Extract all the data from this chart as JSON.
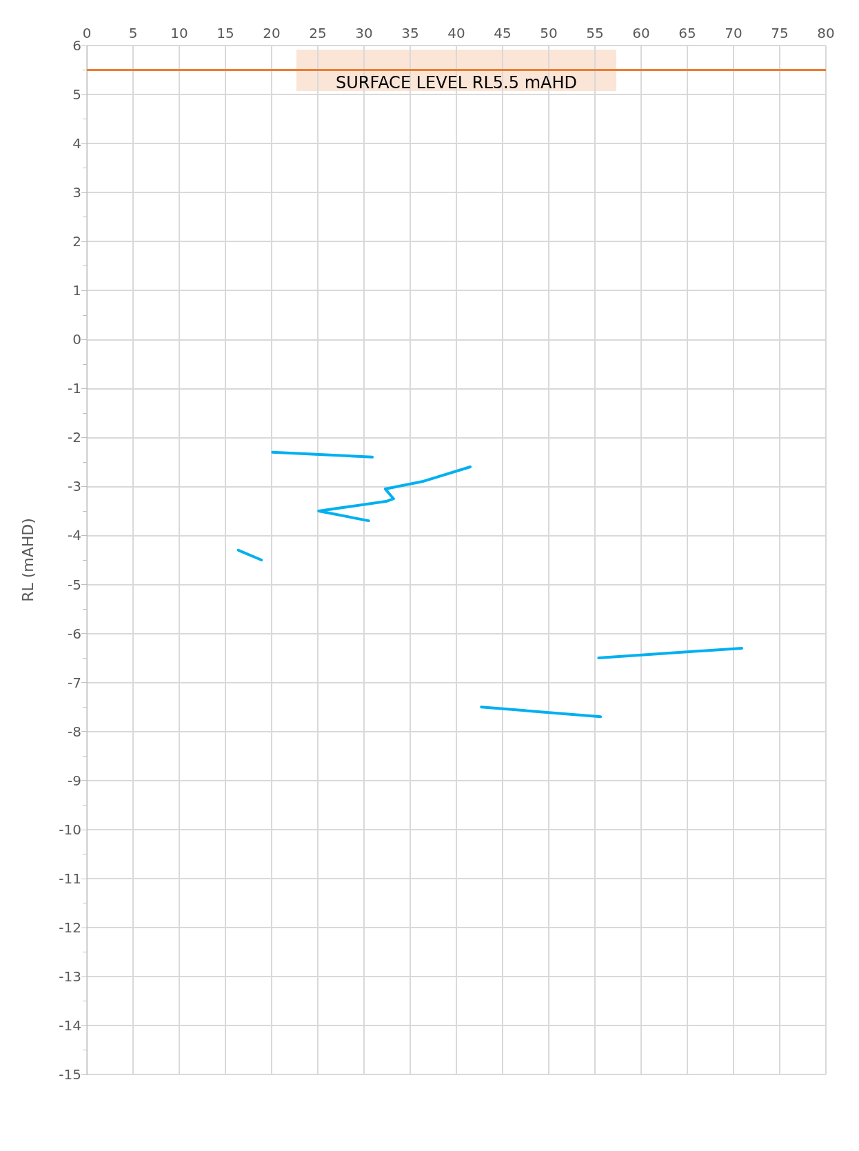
{
  "chart_data": {
    "type": "line",
    "ylabel": "RL (mAHD)",
    "xlim": [
      0,
      80
    ],
    "xticks": [
      0,
      5,
      10,
      15,
      20,
      25,
      30,
      35,
      40,
      45,
      50,
      55,
      60,
      65,
      70,
      75,
      80
    ],
    "ylim": [
      -15,
      6
    ],
    "yticks": [
      -15,
      -14,
      -13,
      -12,
      -11,
      -10,
      -9,
      -8,
      -7,
      -6,
      -5,
      -4,
      -3,
      -2,
      -1,
      0,
      1,
      2,
      3,
      4,
      5,
      6
    ],
    "grid": true,
    "marker": "none",
    "line_style": "solid",
    "series": [
      {
        "color": "#00b0f0",
        "x": [
          20.1,
          30.9
        ],
        "values": [
          -2.3,
          -2.4
        ]
      },
      {
        "color": "#00b0f0",
        "x": [
          41.5,
          36.3,
          32.3,
          33.2,
          32.5,
          25.1,
          30.5
        ],
        "values": [
          -2.6,
          -2.9,
          -3.05,
          -3.25,
          -3.3,
          -3.5,
          -3.7
        ]
      },
      {
        "color": "#00b0f0",
        "x": [
          16.4,
          18.9
        ],
        "values": [
          -4.3,
          -4.5
        ]
      },
      {
        "color": "#00b0f0",
        "x": [
          55.4,
          70.9
        ],
        "values": [
          -6.5,
          -6.3
        ]
      },
      {
        "color": "#00b0f0",
        "x": [
          42.7,
          55.6
        ],
        "values": [
          -7.5,
          -7.7
        ]
      }
    ],
    "ref_lines": [
      {
        "axis": "y",
        "value": 5.5,
        "label": "SURFACE LEVEL RL5.5 mAHD",
        "color": "#ed7d31",
        "line_style": "solid"
      }
    ]
  }
}
